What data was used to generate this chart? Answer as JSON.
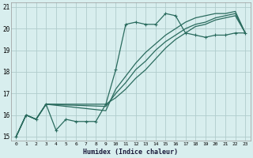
{
  "xlabel": "Humidex (Indice chaleur)",
  "ylabel": "",
  "bg_color": "#d8eeee",
  "grid_color": "#b0cccc",
  "line_color": "#2a6b5e",
  "xlim": [
    -0.5,
    23.5
  ],
  "ylim": [
    14.8,
    21.2
  ],
  "xticks": [
    0,
    1,
    2,
    3,
    4,
    5,
    6,
    7,
    8,
    9,
    10,
    11,
    12,
    13,
    14,
    15,
    16,
    17,
    18,
    19,
    20,
    21,
    22,
    23
  ],
  "yticks": [
    15,
    16,
    17,
    18,
    19,
    20,
    21
  ],
  "series": [
    {
      "x": [
        0,
        1,
        2,
        3,
        4,
        5,
        6,
        7,
        8,
        9,
        10,
        11,
        12,
        13,
        14,
        15,
        16,
        17,
        18,
        19,
        20,
        21,
        22,
        23
      ],
      "y": [
        15.0,
        16.0,
        15.8,
        16.5,
        15.3,
        15.8,
        15.7,
        15.7,
        15.7,
        16.5,
        18.1,
        20.2,
        20.3,
        20.2,
        20.2,
        20.7,
        20.6,
        19.8,
        19.7,
        19.6,
        19.7,
        19.7,
        19.8,
        19.8
      ],
      "has_markers": true
    },
    {
      "x": [
        0,
        1,
        2,
        3,
        9,
        10,
        11,
        12,
        13,
        14,
        15,
        16,
        17,
        18,
        19,
        20,
        21,
        22,
        23
      ],
      "y": [
        15.0,
        16.0,
        15.8,
        16.5,
        16.2,
        17.2,
        17.8,
        18.4,
        18.9,
        19.3,
        19.7,
        20.0,
        20.3,
        20.5,
        20.6,
        20.7,
        20.7,
        20.8,
        19.8
      ],
      "has_markers": false
    },
    {
      "x": [
        0,
        1,
        2,
        3,
        9,
        10,
        11,
        12,
        13,
        14,
        15,
        16,
        17,
        18,
        19,
        20,
        21,
        22,
        23
      ],
      "y": [
        15.0,
        16.0,
        15.8,
        16.5,
        16.4,
        17.0,
        17.5,
        18.1,
        18.5,
        19.0,
        19.4,
        19.7,
        20.0,
        20.2,
        20.3,
        20.5,
        20.6,
        20.7,
        19.8
      ],
      "has_markers": false
    },
    {
      "x": [
        0,
        1,
        2,
        3,
        9,
        10,
        11,
        12,
        13,
        14,
        15,
        16,
        17,
        18,
        19,
        20,
        21,
        22,
        23
      ],
      "y": [
        15.0,
        16.0,
        15.8,
        16.5,
        16.5,
        16.8,
        17.2,
        17.7,
        18.1,
        18.6,
        19.1,
        19.5,
        19.8,
        20.1,
        20.2,
        20.4,
        20.5,
        20.6,
        19.8
      ],
      "has_markers": false
    }
  ]
}
